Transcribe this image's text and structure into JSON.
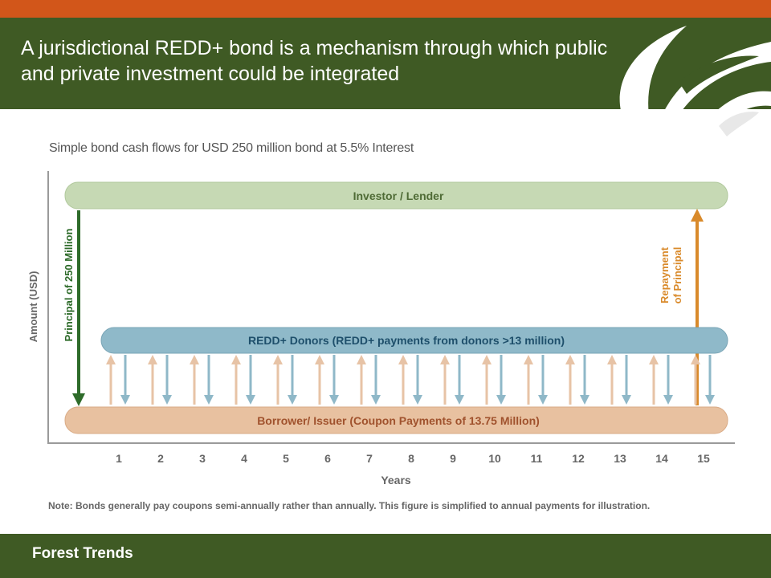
{
  "slide": {
    "title": "A jurisdictional REDD+ bond is a mechanism through which public and private investment could be integrated",
    "subtitle": "Simple bond cash flows for USD 250 million bond at 5.5% Interest",
    "footer": "Forest Trends",
    "logo_icon": "leaf-logo-icon"
  },
  "diagram": {
    "y_axis_label": "Amount (USD)",
    "x_axis_label": "Years",
    "years": [
      "1",
      "2",
      "3",
      "4",
      "5",
      "6",
      "7",
      "8",
      "9",
      "10",
      "11",
      "12",
      "13",
      "14",
      "15"
    ],
    "bars": {
      "investor": "Investor / Lender",
      "donors": "REDD+ Donors (REDD+ payments from donors >13 million)",
      "borrower": "Borrower/ Issuer (Coupon Payments of 13.75 Million)"
    },
    "principal_label": "Principal of 250 Million",
    "repayment_label_line1": "Repayment",
    "repayment_label_line2": "of Principal",
    "note": "Note: Bonds generally pay coupons semi-annually rather than annually. This figure is simplified to annual payments for illustration.",
    "colors": {
      "header": "#3f5a24",
      "accent_stripe": "#d2561a",
      "investor_bar": "#c6d9b4",
      "donors_bar": "#8fb9c9",
      "borrower_bar": "#e8c1a0",
      "principal_arrow": "#2e6b2a",
      "repayment_arrow": "#d98a2b",
      "up_arrow": "#e7c3a6",
      "down_arrow": "#8fb8c8"
    }
  }
}
